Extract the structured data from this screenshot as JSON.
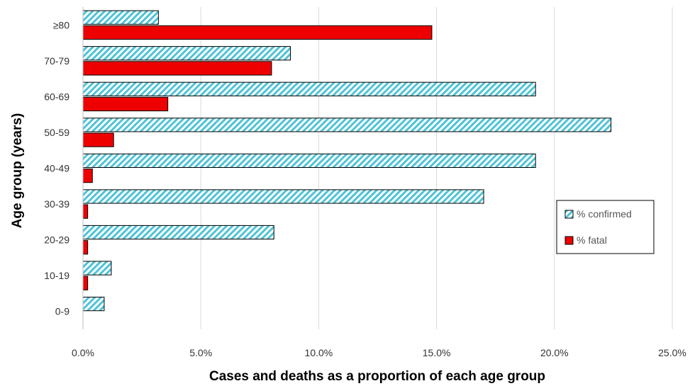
{
  "chart_data": {
    "type": "bar",
    "orientation": "horizontal",
    "categories": [
      "0-9",
      "10-19",
      "20-29",
      "30-39",
      "40-49",
      "50-59",
      "60-69",
      "70-79",
      "≥80"
    ],
    "series": [
      {
        "name": "% confirmed",
        "values": [
          0.9,
          1.2,
          8.1,
          17.0,
          19.2,
          22.4,
          19.2,
          8.8,
          3.2
        ],
        "color": "#4ec3d6",
        "pattern": "diagonal-hatch"
      },
      {
        "name": "% fatal",
        "values": [
          0.0,
          0.2,
          0.2,
          0.2,
          0.4,
          1.3,
          3.6,
          8.0,
          14.8
        ],
        "color": "#ee0000",
        "pattern": "solid"
      }
    ],
    "xlabel": "Cases and deaths as a proportion of each age group",
    "ylabel": "Age group (years)",
    "xlim": [
      0,
      25
    ],
    "xticks": [
      "0.0%",
      "5.0%",
      "10.0%",
      "15.0%",
      "20.0%",
      "25.0%"
    ],
    "grid": "vertical",
    "legend_position": "right"
  }
}
